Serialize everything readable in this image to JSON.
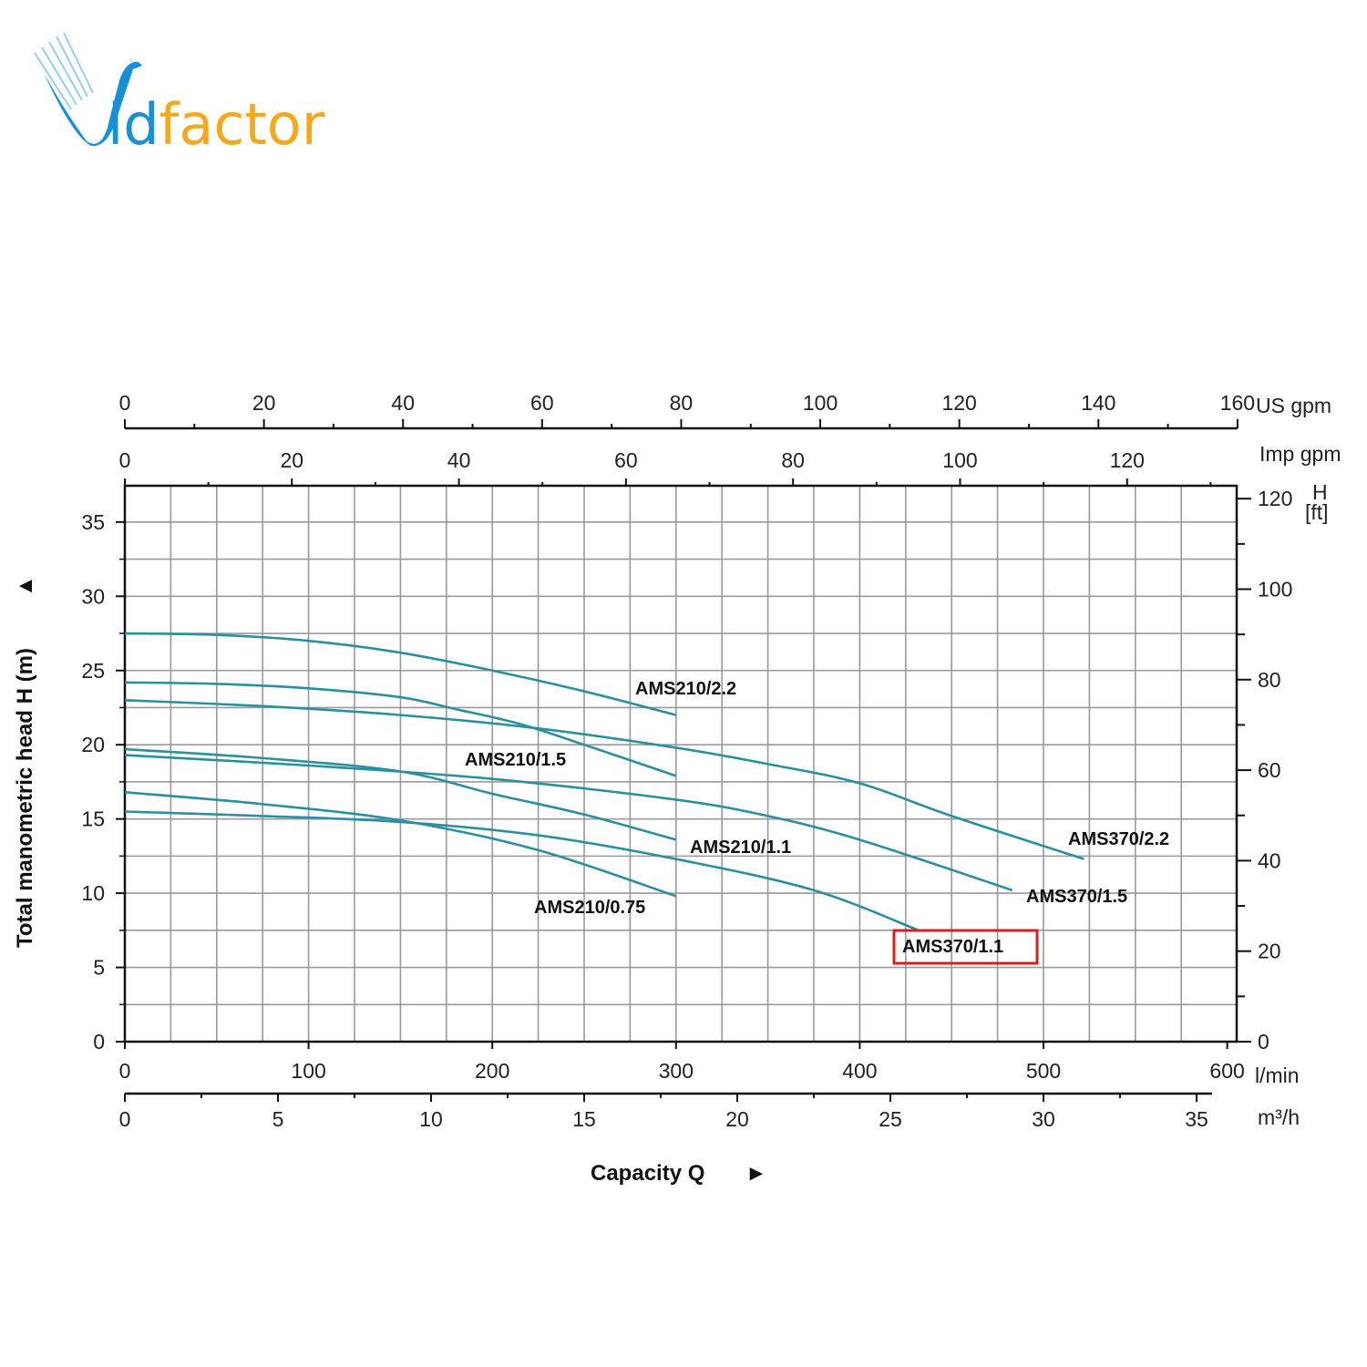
{
  "logo": {
    "text": "Vidfactor",
    "part_blue": "id",
    "part_orange": "factor",
    "blue": "#1a8fd6",
    "orange": "#f5a81c"
  },
  "chart_data": {
    "type": "line",
    "title": "",
    "xlabel": "Capacity Q",
    "xlabel_arrow": "►",
    "ylabel": "Total manometric head H (m)",
    "ylabel_arrow": "▲",
    "x_unit": "l/min",
    "xlim": [
      0,
      600
    ],
    "ylim": [
      0,
      37.5
    ],
    "grid": true,
    "x_ticks": [
      0,
      100,
      200,
      300,
      400,
      500,
      600
    ],
    "y_ticks": [
      0,
      5,
      10,
      15,
      20,
      25,
      30,
      35
    ],
    "secondary_axes": {
      "us_gpm": {
        "unit": "US gpm",
        "ticks": [
          0,
          20,
          40,
          60,
          80,
          100,
          120,
          140,
          160
        ]
      },
      "imp_gpm": {
        "unit": "Imp gpm",
        "ticks": [
          0,
          20,
          40,
          60,
          80,
          100,
          120
        ]
      },
      "m3h": {
        "unit": "m³/h",
        "ticks": [
          0,
          5,
          10,
          15,
          20,
          25,
          30,
          35
        ]
      },
      "ft": {
        "unit_top": "H",
        "unit_bottom": "[ft]",
        "ticks": [
          0,
          20,
          40,
          60,
          80,
          100,
          120
        ]
      }
    },
    "line_color": "#2a8fa0",
    "highlight_color": "#d42020",
    "series": [
      {
        "name": "AMS210/2.2",
        "points": [
          [
            0,
            27.5
          ],
          [
            50,
            27.4
          ],
          [
            100,
            27.0
          ],
          [
            150,
            26.2
          ],
          [
            200,
            25.0
          ],
          [
            250,
            23.6
          ],
          [
            300,
            22.0
          ]
        ]
      },
      {
        "name": "AMS210/1.5",
        "points": [
          [
            0,
            24.2
          ],
          [
            50,
            24.1
          ],
          [
            100,
            23.8
          ],
          [
            150,
            23.2
          ],
          [
            180,
            22.4
          ],
          [
            215,
            21.4
          ],
          [
            250,
            20.0
          ],
          [
            300,
            17.9
          ]
        ]
      },
      {
        "name": "AMS370/2.2",
        "points": [
          [
            0,
            23.0
          ],
          [
            75,
            22.6
          ],
          [
            150,
            22.0
          ],
          [
            225,
            21.1
          ],
          [
            300,
            19.8
          ],
          [
            350,
            18.7
          ],
          [
            400,
            17.4
          ],
          [
            450,
            15.2
          ],
          [
            522,
            12.3
          ]
        ]
      },
      {
        "name": "AMS210/1.1",
        "points": [
          [
            0,
            19.7
          ],
          [
            75,
            19.1
          ],
          [
            150,
            18.2
          ],
          [
            200,
            16.7
          ],
          [
            250,
            15.3
          ],
          [
            300,
            13.6
          ]
        ]
      },
      {
        "name": "AMS370/1.5",
        "points": [
          [
            0,
            19.3
          ],
          [
            100,
            18.6
          ],
          [
            200,
            17.7
          ],
          [
            300,
            16.3
          ],
          [
            350,
            15.2
          ],
          [
            400,
            13.6
          ],
          [
            483,
            10.2
          ]
        ]
      },
      {
        "name": "AMS210/0.75",
        "points": [
          [
            0,
            16.8
          ],
          [
            75,
            16.0
          ],
          [
            150,
            14.9
          ],
          [
            225,
            12.9
          ],
          [
            300,
            9.8
          ]
        ]
      },
      {
        "name": "AMS370/1.1",
        "points": [
          [
            0,
            15.5
          ],
          [
            75,
            15.2
          ],
          [
            150,
            14.8
          ],
          [
            225,
            13.9
          ],
          [
            300,
            12.3
          ],
          [
            375,
            10.2
          ],
          [
            432,
            7.5
          ]
        ]
      }
    ],
    "highlighted_series": "AMS370/1.1"
  }
}
